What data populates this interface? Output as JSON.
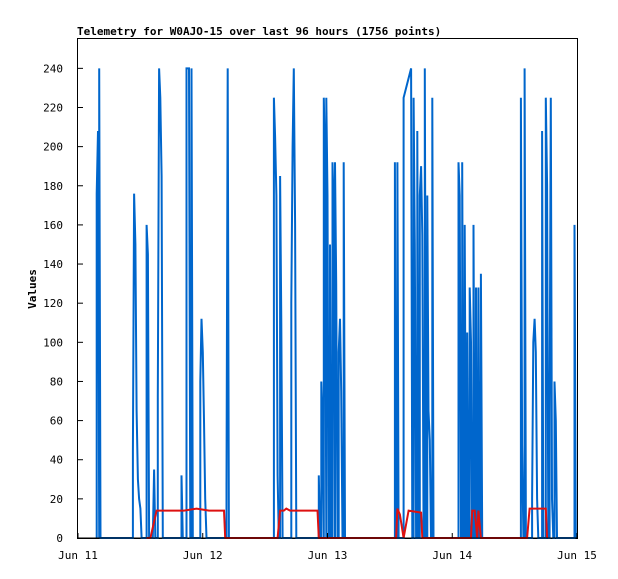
{
  "chart_data": {
    "type": "line",
    "title": "Telemetry for W0AJO-15 over last 96 hours (1756 points)",
    "xlabel": "",
    "ylabel": "Values",
    "x_ticks": [
      "Jun 11",
      "Jun 12",
      "Jun 13",
      "Jun 14",
      "Jun 15"
    ],
    "x_range": [
      "Jun 11",
      "Jun 15"
    ],
    "ylim": [
      0,
      255
    ],
    "y_ticks": [
      0,
      20,
      40,
      60,
      80,
      100,
      120,
      140,
      160,
      180,
      200,
      220,
      240
    ],
    "grid": false,
    "legend": "none",
    "series": [
      {
        "color": "#0066cc",
        "points": [
          [
            0.15,
            0
          ],
          [
            0.15,
            176
          ],
          [
            0.16,
            208
          ],
          [
            0.17,
            0
          ],
          [
            0.17,
            240
          ],
          [
            0.18,
            0
          ],
          [
            0.44,
            0
          ],
          [
            0.44,
            44
          ],
          [
            0.45,
            176
          ],
          [
            0.46,
            150
          ],
          [
            0.47,
            65
          ],
          [
            0.48,
            30
          ],
          [
            0.49,
            20
          ],
          [
            0.5,
            15
          ],
          [
            0.51,
            0
          ],
          [
            0.55,
            0
          ],
          [
            0.55,
            160
          ],
          [
            0.56,
            145
          ],
          [
            0.57,
            0
          ],
          [
            0.6,
            0
          ],
          [
            0.61,
            35
          ],
          [
            0.62,
            0
          ],
          [
            0.64,
            0
          ],
          [
            0.64,
            72
          ],
          [
            0.65,
            240
          ],
          [
            0.66,
            225
          ],
          [
            0.67,
            185
          ],
          [
            0.68,
            0
          ],
          [
            0.83,
            0
          ],
          [
            0.83,
            32
          ],
          [
            0.84,
            0
          ],
          [
            0.87,
            0
          ],
          [
            0.87,
            240
          ],
          [
            0.89,
            240
          ],
          [
            0.9,
            0
          ],
          [
            0.91,
            0
          ],
          [
            0.91,
            240
          ],
          [
            0.92,
            0
          ],
          [
            0.98,
            0
          ],
          [
            0.98,
            80
          ],
          [
            0.99,
            112
          ],
          [
            1.0,
            95
          ],
          [
            1.01,
            60
          ],
          [
            1.02,
            20
          ],
          [
            1.03,
            0
          ],
          [
            1.19,
            0
          ],
          [
            1.19,
            25
          ],
          [
            1.2,
            240
          ],
          [
            1.21,
            0
          ],
          [
            1.57,
            0
          ],
          [
            1.57,
            225
          ],
          [
            1.58,
            205
          ],
          [
            1.59,
            175
          ],
          [
            1.6,
            32
          ],
          [
            1.61,
            0
          ],
          [
            1.62,
            0
          ],
          [
            1.62,
            185
          ],
          [
            1.63,
            110
          ],
          [
            1.64,
            0
          ],
          [
            1.71,
            0
          ],
          [
            1.71,
            120
          ],
          [
            1.72,
            200
          ],
          [
            1.73,
            240
          ],
          [
            1.74,
            160
          ],
          [
            1.75,
            0
          ],
          [
            1.93,
            0
          ],
          [
            1.93,
            32
          ],
          [
            1.94,
            0
          ],
          [
            1.95,
            0
          ],
          [
            1.95,
            80
          ],
          [
            1.96,
            60
          ],
          [
            1.97,
            0
          ],
          [
            1.97,
            0
          ],
          [
            1.97,
            225
          ],
          [
            1.98,
            192
          ],
          [
            1.99,
            0
          ],
          [
            1.99,
            0
          ],
          [
            1.99,
            225
          ],
          [
            2.0,
            175
          ],
          [
            2.01,
            0
          ],
          [
            2.02,
            0
          ],
          [
            2.02,
            150
          ],
          [
            2.03,
            0
          ],
          [
            2.04,
            0
          ],
          [
            2.04,
            192
          ],
          [
            2.05,
            170
          ],
          [
            2.06,
            0
          ],
          [
            2.06,
            0
          ],
          [
            2.06,
            192
          ],
          [
            2.07,
            130
          ],
          [
            2.08,
            0
          ],
          [
            2.09,
            0
          ],
          [
            2.09,
            95
          ],
          [
            2.1,
            112
          ],
          [
            2.11,
            75
          ],
          [
            2.12,
            0
          ],
          [
            2.13,
            0
          ],
          [
            2.13,
            192
          ],
          [
            2.14,
            0
          ],
          [
            2.54,
            0
          ],
          [
            2.54,
            192
          ],
          [
            2.55,
            0
          ],
          [
            2.56,
            0
          ],
          [
            2.56,
            192
          ],
          [
            2.57,
            0
          ],
          [
            2.61,
            0
          ],
          [
            2.61,
            225
          ],
          [
            2.67,
            240
          ],
          [
            2.68,
            0
          ],
          [
            2.69,
            0
          ],
          [
            2.69,
            225
          ],
          [
            2.7,
            150
          ],
          [
            2.71,
            0
          ],
          [
            2.72,
            0
          ],
          [
            2.72,
            208
          ],
          [
            2.73,
            0
          ],
          [
            2.74,
            0
          ],
          [
            2.74,
            175
          ],
          [
            2.75,
            190
          ],
          [
            2.76,
            155
          ],
          [
            2.77,
            0
          ],
          [
            2.78,
            0
          ],
          [
            2.78,
            240
          ],
          [
            2.79,
            0
          ],
          [
            2.8,
            0
          ],
          [
            2.8,
            175
          ],
          [
            2.81,
            65
          ],
          [
            2.82,
            50
          ],
          [
            2.83,
            0
          ],
          [
            2.84,
            0
          ],
          [
            2.84,
            225
          ],
          [
            2.85,
            0
          ],
          [
            3.05,
            0
          ],
          [
            3.05,
            192
          ],
          [
            3.06,
            175
          ],
          [
            3.07,
            0
          ],
          [
            3.08,
            0
          ],
          [
            3.08,
            192
          ],
          [
            3.09,
            0
          ],
          [
            3.1,
            0
          ],
          [
            3.1,
            160
          ],
          [
            3.11,
            0
          ],
          [
            3.12,
            0
          ],
          [
            3.12,
            105
          ],
          [
            3.13,
            0
          ],
          [
            3.14,
            0
          ],
          [
            3.14,
            128
          ],
          [
            3.15,
            100
          ],
          [
            3.16,
            0
          ],
          [
            3.17,
            0
          ],
          [
            3.17,
            160
          ],
          [
            3.18,
            0
          ],
          [
            3.19,
            0
          ],
          [
            3.19,
            128
          ],
          [
            3.2,
            0
          ],
          [
            3.21,
            0
          ],
          [
            3.21,
            128
          ],
          [
            3.22,
            0
          ],
          [
            3.23,
            0
          ],
          [
            3.23,
            135
          ],
          [
            3.24,
            0
          ],
          [
            3.55,
            0
          ],
          [
            3.55,
            225
          ],
          [
            3.56,
            48
          ],
          [
            3.57,
            0
          ],
          [
            3.58,
            0
          ],
          [
            3.58,
            240
          ],
          [
            3.59,
            0
          ],
          [
            3.64,
            0
          ],
          [
            3.64,
            20
          ],
          [
            3.65,
            100
          ],
          [
            3.66,
            112
          ],
          [
            3.67,
            95
          ],
          [
            3.68,
            20
          ],
          [
            3.69,
            0
          ],
          [
            3.72,
            0
          ],
          [
            3.72,
            208
          ],
          [
            3.73,
            0
          ],
          [
            3.75,
            0
          ],
          [
            3.75,
            225
          ],
          [
            3.76,
            180
          ],
          [
            3.77,
            0
          ],
          [
            3.78,
            0
          ],
          [
            3.78,
            64
          ],
          [
            3.79,
            225
          ],
          [
            3.8,
            20
          ],
          [
            3.81,
            0
          ],
          [
            3.82,
            0
          ],
          [
            3.82,
            80
          ],
          [
            3.83,
            60
          ],
          [
            3.84,
            0
          ],
          [
            3.98,
            0
          ],
          [
            3.98,
            160
          ],
          [
            3.99,
            0
          ]
        ]
      },
      {
        "color": "#dd1111",
        "points": [
          [
            0.55,
            0
          ],
          [
            0.58,
            0
          ],
          [
            0.63,
            14
          ],
          [
            0.75,
            14
          ],
          [
            0.85,
            14
          ],
          [
            0.95,
            15
          ],
          [
            1.05,
            14
          ],
          [
            1.17,
            14
          ],
          [
            1.18,
            0
          ],
          [
            1.6,
            0
          ],
          [
            1.62,
            14
          ],
          [
            1.65,
            14
          ],
          [
            1.67,
            15
          ],
          [
            1.7,
            14
          ],
          [
            1.8,
            14
          ],
          [
            1.92,
            14
          ],
          [
            1.93,
            0
          ],
          [
            2.55,
            0
          ],
          [
            2.56,
            15
          ],
          [
            2.58,
            12
          ],
          [
            2.61,
            0
          ],
          [
            2.65,
            14
          ],
          [
            2.75,
            13
          ],
          [
            2.76,
            0
          ],
          [
            3.15,
            0
          ],
          [
            3.16,
            14
          ],
          [
            3.18,
            14
          ],
          [
            3.2,
            0
          ],
          [
            3.21,
            14
          ],
          [
            3.23,
            0
          ],
          [
            3.6,
            0
          ],
          [
            3.62,
            15
          ],
          [
            3.72,
            15
          ],
          [
            3.75,
            15
          ],
          [
            3.76,
            0
          ]
        ]
      }
    ]
  }
}
